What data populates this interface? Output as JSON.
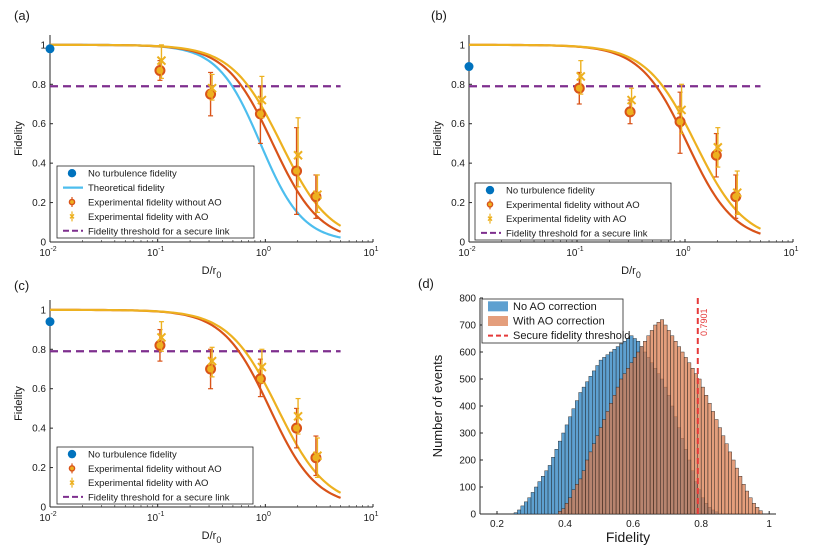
{
  "colors": {
    "noturb": "#0072BD",
    "theory": "#4DBEEE",
    "without": "#D95319",
    "with": "#EDB120",
    "threshold": "#7E2F8E",
    "hist_no": "#4C96CB",
    "hist_with": "#D9794A",
    "secure": "#E53A3A"
  },
  "chart_data": [
    {
      "panel_label": "(a)",
      "type": "line",
      "xscale": "log",
      "xlim": [
        0.01,
        10
      ],
      "ylim": [
        0,
        1.05
      ],
      "xticks": [
        {
          "value": 0.01,
          "base": "10",
          "exp": "-2"
        },
        {
          "value": 0.1,
          "base": "10",
          "exp": "-1"
        },
        {
          "value": 1,
          "base": "10",
          "exp": "0"
        },
        {
          "value": 10,
          "base": "10",
          "exp": "1"
        }
      ],
      "yticks": [
        {
          "value": 0,
          "label": "0"
        },
        {
          "value": 0.2,
          "label": "0.2"
        },
        {
          "value": 0.4,
          "label": "0.4"
        },
        {
          "value": 0.6,
          "label": "0.6"
        },
        {
          "value": 0.8,
          "label": "0.8"
        },
        {
          "value": 1,
          "label": "1"
        }
      ],
      "xlabel_main": "D/r",
      "xlabel_sub": "0",
      "ylabel": "Fidelity",
      "noturb_point": {
        "x": 0.01,
        "y": 0.98
      },
      "threshold_y": 0.79,
      "curve_x_range": [
        0.01,
        5
      ],
      "curves": [
        {
          "name": "theory",
          "x0": 0.9,
          "n": 2.2
        },
        {
          "name": "without",
          "x0": 1.17,
          "n": 2.0
        },
        {
          "name": "with",
          "x0": 1.4,
          "n": 1.9
        }
      ],
      "experiment_without": [
        {
          "x": 0.105,
          "y": 0.87,
          "lo": 0.82,
          "hi": 0.92
        },
        {
          "x": 0.31,
          "y": 0.75,
          "lo": 0.64,
          "hi": 0.86
        },
        {
          "x": 0.9,
          "y": 0.65,
          "lo": 0.5,
          "hi": 0.79
        },
        {
          "x": 1.95,
          "y": 0.36,
          "lo": 0.14,
          "hi": 0.58
        },
        {
          "x": 2.95,
          "y": 0.23,
          "lo": 0.12,
          "hi": 0.34
        }
      ],
      "experiment_with": [
        {
          "x": 0.105,
          "y": 0.92,
          "lo": 0.83,
          "hi": 1.0
        },
        {
          "x": 0.31,
          "y": 0.78,
          "lo": 0.72,
          "hi": 0.85
        },
        {
          "x": 0.9,
          "y": 0.72,
          "lo": 0.63,
          "hi": 0.84
        },
        {
          "x": 1.95,
          "y": 0.44,
          "lo": 0.28,
          "hi": 0.63
        },
        {
          "x": 2.95,
          "y": 0.24,
          "lo": 0.15,
          "hi": 0.34
        }
      ],
      "legend": [
        {
          "key": "noturb",
          "label": "No turbulence fidelity"
        },
        {
          "key": "theory",
          "label": "Theoretical fidelity"
        },
        {
          "key": "without",
          "label": "Experimental fidelity without AO"
        },
        {
          "key": "with",
          "label": "Experimental fidelity with AO"
        },
        {
          "key": "threshold",
          "label": "Fidelity threshold for a secure link"
        }
      ]
    },
    {
      "panel_label": "(b)",
      "type": "line",
      "xscale": "log",
      "xlim": [
        0.01,
        10
      ],
      "ylim": [
        0,
        1.05
      ],
      "xticks": [
        {
          "value": 0.01,
          "base": "10",
          "exp": "-2"
        },
        {
          "value": 0.1,
          "base": "10",
          "exp": "-1"
        },
        {
          "value": 1,
          "base": "10",
          "exp": "0"
        },
        {
          "value": 10,
          "base": "10",
          "exp": "1"
        }
      ],
      "yticks": [
        {
          "value": 0,
          "label": "0"
        },
        {
          "value": 0.2,
          "label": "0.2"
        },
        {
          "value": 0.4,
          "label": "0.4"
        },
        {
          "value": 0.6,
          "label": "0.6"
        },
        {
          "value": 0.8,
          "label": "0.8"
        },
        {
          "value": 1,
          "label": "1"
        }
      ],
      "xlabel_main": "D/r",
      "xlabel_sub": "0",
      "ylabel": "Fidelity",
      "noturb_point": {
        "x": 0.01,
        "y": 0.89
      },
      "threshold_y": 0.79,
      "curve_x_range": [
        0.01,
        5
      ],
      "curves": [
        {
          "name": "without",
          "x0": 1.05,
          "n": 2.0
        },
        {
          "name": "with",
          "x0": 1.25,
          "n": 1.9
        }
      ],
      "experiment_without": [
        {
          "x": 0.105,
          "y": 0.78,
          "lo": 0.7,
          "hi": 0.86
        },
        {
          "x": 0.31,
          "y": 0.66,
          "lo": 0.6,
          "hi": 0.72
        },
        {
          "x": 0.9,
          "y": 0.61,
          "lo": 0.45,
          "hi": 0.76
        },
        {
          "x": 1.95,
          "y": 0.44,
          "lo": 0.33,
          "hi": 0.55
        },
        {
          "x": 2.95,
          "y": 0.23,
          "lo": 0.12,
          "hi": 0.34
        }
      ],
      "experiment_with": [
        {
          "x": 0.105,
          "y": 0.84,
          "lo": 0.75,
          "hi": 0.92
        },
        {
          "x": 0.31,
          "y": 0.72,
          "lo": 0.65,
          "hi": 0.78
        },
        {
          "x": 0.9,
          "y": 0.67,
          "lo": 0.55,
          "hi": 0.8
        },
        {
          "x": 1.95,
          "y": 0.48,
          "lo": 0.38,
          "hi": 0.58
        },
        {
          "x": 2.95,
          "y": 0.25,
          "lo": 0.14,
          "hi": 0.36
        }
      ],
      "legend": [
        {
          "key": "noturb",
          "label": "No turbulence fidelity"
        },
        {
          "key": "without",
          "label": "Experimental fidelity without AO"
        },
        {
          "key": "with",
          "label": "Experimental fidelity with AO"
        },
        {
          "key": "threshold",
          "label": "Fidelity threshold for a secure link"
        }
      ]
    },
    {
      "panel_label": "(c)",
      "type": "line",
      "xscale": "log",
      "xlim": [
        0.01,
        10
      ],
      "ylim": [
        0,
        1.05
      ],
      "xticks": [
        {
          "value": 0.01,
          "base": "10",
          "exp": "-2"
        },
        {
          "value": 0.1,
          "base": "10",
          "exp": "-1"
        },
        {
          "value": 1,
          "base": "10",
          "exp": "0"
        },
        {
          "value": 10,
          "base": "10",
          "exp": "1"
        }
      ],
      "yticks": [
        {
          "value": 0,
          "label": "0"
        },
        {
          "value": 0.2,
          "label": "0.2"
        },
        {
          "value": 0.4,
          "label": "0.4"
        },
        {
          "value": 0.6,
          "label": "0.6"
        },
        {
          "value": 0.8,
          "label": "0.8"
        },
        {
          "value": 1,
          "label": "1"
        }
      ],
      "xlabel_main": "D/r",
      "xlabel_sub": "0",
      "ylabel": "Fidelity",
      "noturb_point": {
        "x": 0.01,
        "y": 0.94
      },
      "threshold_y": 0.79,
      "curve_x_range": [
        0.01,
        5
      ],
      "curves": [
        {
          "name": "without",
          "x0": 1.1,
          "n": 2.0
        },
        {
          "name": "with",
          "x0": 1.3,
          "n": 1.9
        }
      ],
      "experiment_without": [
        {
          "x": 0.105,
          "y": 0.82,
          "lo": 0.74,
          "hi": 0.9
        },
        {
          "x": 0.31,
          "y": 0.7,
          "lo": 0.6,
          "hi": 0.8
        },
        {
          "x": 0.9,
          "y": 0.65,
          "lo": 0.56,
          "hi": 0.75
        },
        {
          "x": 1.95,
          "y": 0.4,
          "lo": 0.3,
          "hi": 0.5
        },
        {
          "x": 2.95,
          "y": 0.25,
          "lo": 0.16,
          "hi": 0.36
        }
      ],
      "experiment_with": [
        {
          "x": 0.105,
          "y": 0.86,
          "lo": 0.79,
          "hi": 0.94
        },
        {
          "x": 0.31,
          "y": 0.74,
          "lo": 0.66,
          "hi": 0.81
        },
        {
          "x": 0.9,
          "y": 0.71,
          "lo": 0.63,
          "hi": 0.8
        },
        {
          "x": 1.95,
          "y": 0.46,
          "lo": 0.37,
          "hi": 0.55
        },
        {
          "x": 2.95,
          "y": 0.26,
          "lo": 0.15,
          "hi": 0.35
        }
      ],
      "legend": [
        {
          "key": "noturb",
          "label": "No turbulence fidelity"
        },
        {
          "key": "without",
          "label": "Experimental fidelity without AO"
        },
        {
          "key": "with",
          "label": "Experimental fidelity with AO"
        },
        {
          "key": "threshold",
          "label": "Fidelity threshold for a secure link"
        }
      ]
    },
    {
      "panel_label": "(d)",
      "type": "bar",
      "subtype": "histogram",
      "xlim": [
        0.15,
        1.02
      ],
      "ylim": [
        0,
        800
      ],
      "bin_width": 0.01,
      "xticks": [
        {
          "value": 0.2,
          "label": "0.2"
        },
        {
          "value": 0.4,
          "label": "0.4"
        },
        {
          "value": 0.6,
          "label": "0.6"
        },
        {
          "value": 0.8,
          "label": "0.8"
        },
        {
          "value": 1,
          "label": "1"
        }
      ],
      "yticks": [
        {
          "value": 0,
          "label": "0"
        },
        {
          "value": 100,
          "label": "100"
        },
        {
          "value": 200,
          "label": "200"
        },
        {
          "value": 300,
          "label": "300"
        },
        {
          "value": 400,
          "label": "400"
        },
        {
          "value": 500,
          "label": "500"
        },
        {
          "value": 600,
          "label": "600"
        },
        {
          "value": 700,
          "label": "700"
        },
        {
          "value": 800,
          "label": "800"
        }
      ],
      "xlabel": "Fidelity",
      "ylabel": "Number of events",
      "threshold_x": 0.7901,
      "threshold_text": "0.7901",
      "series": [
        {
          "name": "No AO correction",
          "key": "hist_no",
          "start": 0.25,
          "counts": [
            5,
            15,
            30,
            45,
            60,
            80,
            100,
            120,
            140,
            160,
            180,
            210,
            240,
            270,
            300,
            330,
            360,
            390,
            420,
            450,
            470,
            490,
            510,
            530,
            550,
            570,
            580,
            590,
            600,
            610,
            620,
            630,
            640,
            650,
            660,
            650,
            640,
            620,
            600,
            580,
            560,
            540,
            520,
            500,
            470,
            440,
            400,
            360,
            320,
            280,
            240,
            200,
            160,
            120,
            90,
            60,
            40,
            25,
            15,
            8
          ]
        },
        {
          "name": "With AO correction",
          "key": "hist_with",
          "start": 0.38,
          "counts": [
            10,
            20,
            40,
            60,
            90,
            110,
            130,
            160,
            200,
            230,
            260,
            290,
            320,
            350,
            380,
            410,
            440,
            470,
            500,
            520,
            540,
            560,
            580,
            600,
            620,
            640,
            660,
            680,
            700,
            710,
            720,
            700,
            680,
            660,
            640,
            620,
            600,
            580,
            560,
            540,
            520,
            500,
            470,
            440,
            410,
            380,
            350,
            320,
            290,
            260,
            230,
            200,
            170,
            140,
            110,
            85,
            60,
            40,
            25,
            12
          ]
        }
      ],
      "legend": [
        {
          "key": "hist_no",
          "label": "No AO correction"
        },
        {
          "key": "hist_with",
          "label": "With AO correction"
        },
        {
          "key": "secure",
          "label": "Secure fidelity threshold"
        }
      ]
    }
  ]
}
